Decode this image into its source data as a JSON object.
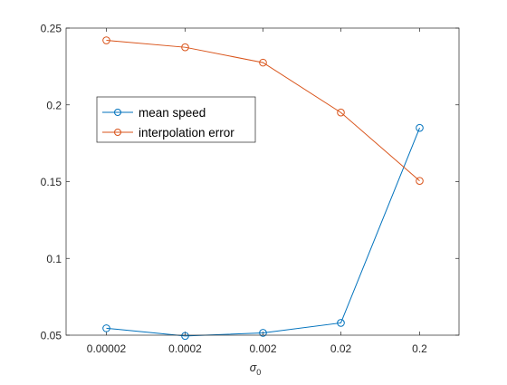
{
  "chart_data": {
    "type": "line",
    "title": "",
    "xlabel": "σ",
    "xlabel_subscript": "0",
    "ylabel": "",
    "categories": [
      "0.00002",
      "0.0002",
      "0.002",
      "0.02",
      "0.2"
    ],
    "ylim": [
      0.05,
      0.25
    ],
    "yticks": [
      0.05,
      0.1,
      0.15,
      0.2,
      0.25
    ],
    "ytick_labels": [
      "0.05",
      "0.1",
      "0.15",
      "0.2",
      "0.25"
    ],
    "grid": false,
    "legend_position": "upper-left-inside",
    "marker": "circle",
    "series": [
      {
        "name": "mean speed",
        "color": "#0072BD",
        "values": [
          0.0545,
          0.0495,
          0.0515,
          0.058,
          0.185
        ]
      },
      {
        "name": "interpolation error",
        "color": "#D95319",
        "values": [
          0.242,
          0.2375,
          0.2275,
          0.195,
          0.1505
        ]
      }
    ]
  }
}
